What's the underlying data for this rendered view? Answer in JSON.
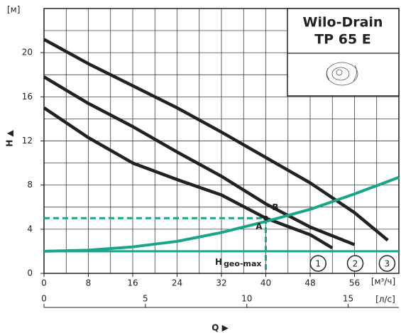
{
  "chart_data": {
    "type": "line",
    "title": "Wilo-Drain",
    "subtitle": "TP 65 E",
    "y_label": "H ▲",
    "y_unit": "[м]",
    "x_label": "Q ▶",
    "x_unit": "[м³/ч]",
    "x2_unit": "[л/с]",
    "xlim": [
      0,
      64
    ],
    "xticks": [
      0,
      8,
      16,
      24,
      32,
      40,
      48,
      56
    ],
    "x2lim": [
      0,
      17.5
    ],
    "x2ticks": [
      0,
      5,
      10,
      15
    ],
    "ylim": [
      0,
      24
    ],
    "yticks": [
      0,
      4,
      8,
      12,
      16,
      20
    ],
    "xgrid": [
      4,
      8,
      12,
      16,
      20,
      24,
      28,
      32,
      36,
      40,
      44,
      48,
      52,
      56,
      60
    ],
    "ygrid": [
      2,
      4,
      6,
      8,
      10,
      12,
      14,
      16,
      18,
      20,
      22
    ],
    "grid": true,
    "series": [
      {
        "name": "1",
        "color": "#222222",
        "x": [
          0,
          8,
          16,
          24,
          32,
          40,
          48,
          52
        ],
        "values": [
          15,
          12.3,
          10,
          8.5,
          7.1,
          5.0,
          3.5,
          2.3
        ]
      },
      {
        "name": "2",
        "color": "#222222",
        "x": [
          0,
          8,
          16,
          24,
          32,
          40,
          48,
          56
        ],
        "values": [
          17.8,
          15.4,
          13.3,
          11,
          8.8,
          6.3,
          4.2,
          2.6
        ]
      },
      {
        "name": "3",
        "color": "#222222",
        "x": [
          0,
          8,
          16,
          24,
          32,
          40,
          48,
          56,
          62
        ],
        "values": [
          21.2,
          19,
          17,
          15,
          12.8,
          10.5,
          8.2,
          5.5,
          3.0
        ]
      },
      {
        "color": "#1aa58a",
        "x": [
          0,
          8,
          16,
          24,
          32,
          40,
          48,
          56,
          64
        ],
        "values": [
          2,
          2.1,
          2.4,
          2.9,
          3.7,
          4.7,
          5.8,
          7.2,
          8.7
        ]
      }
    ],
    "hgeo": {
      "label": "H",
      "sub": "geo-max",
      "value": 2,
      "color": "#1aa58a"
    },
    "points": [
      {
        "label": "A",
        "x": 40,
        "y": 5.0
      },
      {
        "label": "B",
        "x": 41,
        "y": 5.3
      }
    ]
  }
}
